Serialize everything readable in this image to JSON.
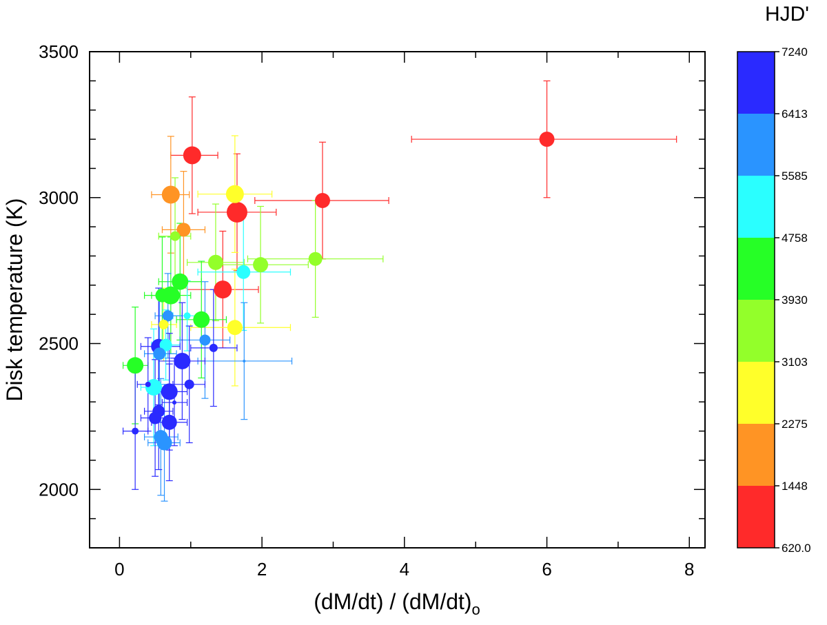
{
  "chart_data": {
    "type": "scatter",
    "title": "",
    "xlabel_main": "(dM/dt) / (dM/dt)",
    "xlabel_sub": "o",
    "ylabel": "Disk temperature (K)",
    "xlim": [
      -0.42,
      8.22
    ],
    "ylim": [
      1800,
      3500
    ],
    "xticks": [
      "0",
      "2",
      "4",
      "6",
      "8"
    ],
    "yticks": [
      "2000",
      "2500",
      "3000",
      "3500"
    ],
    "colorbar": {
      "title": "HJD'",
      "ticks": [
        "620.0",
        "1448",
        "2275",
        "3103",
        "3930",
        "4758",
        "5585",
        "6413",
        "7240"
      ],
      "colors": [
        "#ff2a2a",
        "#ff9424",
        "#ffff2a",
        "#93ff2a",
        "#26ff26",
        "#2affff",
        "#2a94ff",
        "#2a2aff"
      ]
    },
    "points": [
      {
        "x": 6.0,
        "y": 3200,
        "xlo": 4.1,
        "xhi": 7.82,
        "ylo": 3000,
        "yhi": 3400,
        "size": 11,
        "color": "#ff2a2a"
      },
      {
        "x": 1.02,
        "y": 3145,
        "xlo": 0.72,
        "xhi": 1.38,
        "ylo": 2945,
        "yhi": 3345,
        "size": 13,
        "color": "#ff2a2a"
      },
      {
        "x": 2.85,
        "y": 2990,
        "xlo": 1.9,
        "xhi": 3.78,
        "ylo": 2790,
        "yhi": 3190,
        "size": 11,
        "color": "#ff2a2a"
      },
      {
        "x": 1.65,
        "y": 2950,
        "xlo": 1.1,
        "xhi": 2.2,
        "ylo": 2750,
        "yhi": 3150,
        "size": 15,
        "color": "#ff2a2a"
      },
      {
        "x": 1.45,
        "y": 2685,
        "xlo": 0.95,
        "xhi": 1.95,
        "ylo": 2485,
        "yhi": 2885,
        "size": 13,
        "color": "#ff2a2a"
      },
      {
        "x": 0.72,
        "y": 3010,
        "xlo": 0.45,
        "xhi": 0.98,
        "ylo": 2810,
        "yhi": 3210,
        "size": 13,
        "color": "#ff9424"
      },
      {
        "x": 0.9,
        "y": 2890,
        "xlo": 0.6,
        "xhi": 1.2,
        "ylo": 2690,
        "yhi": 3090,
        "size": 10,
        "color": "#ff9424"
      },
      {
        "x": 1.62,
        "y": 3012,
        "xlo": 1.1,
        "xhi": 2.14,
        "ylo": 2812,
        "yhi": 3212,
        "size": 13,
        "color": "#ffff2a"
      },
      {
        "x": 1.62,
        "y": 2555,
        "xlo": 1.0,
        "xhi": 2.4,
        "ylo": 2355,
        "yhi": 2755,
        "size": 11,
        "color": "#ffff2a"
      },
      {
        "x": 0.62,
        "y": 2565,
        "xlo": 0.45,
        "xhi": 0.8,
        "ylo": 2440,
        "yhi": 2690,
        "size": 7,
        "color": "#ffff2a"
      },
      {
        "x": 2.75,
        "y": 2790,
        "xlo": 1.8,
        "xhi": 3.7,
        "ylo": 2590,
        "yhi": 2990,
        "size": 10,
        "color": "#93ff2a"
      },
      {
        "x": 1.98,
        "y": 2770,
        "xlo": 1.3,
        "xhi": 2.65,
        "ylo": 2570,
        "yhi": 2970,
        "size": 11,
        "color": "#93ff2a"
      },
      {
        "x": 1.35,
        "y": 2778,
        "xlo": 0.95,
        "xhi": 1.75,
        "ylo": 2578,
        "yhi": 2978,
        "size": 11,
        "color": "#93ff2a"
      },
      {
        "x": 0.78,
        "y": 2868,
        "xlo": 0.55,
        "xhi": 1.0,
        "ylo": 2668,
        "yhi": 3068,
        "size": 7,
        "color": "#93ff2a"
      },
      {
        "x": 0.85,
        "y": 2712,
        "xlo": 0.55,
        "xhi": 1.15,
        "ylo": 2512,
        "yhi": 2912,
        "size": 12,
        "color": "#26ff26"
      },
      {
        "x": 0.72,
        "y": 2665,
        "xlo": 0.45,
        "xhi": 1.0,
        "ylo": 2465,
        "yhi": 2865,
        "size": 13,
        "color": "#26ff26"
      },
      {
        "x": 0.6,
        "y": 2665,
        "xlo": 0.35,
        "xhi": 0.85,
        "ylo": 2465,
        "yhi": 2865,
        "size": 10,
        "color": "#26ff26"
      },
      {
        "x": 1.15,
        "y": 2582,
        "xlo": 0.8,
        "xhi": 1.5,
        "ylo": 2382,
        "yhi": 2782,
        "size": 12,
        "color": "#26ff26"
      },
      {
        "x": 0.22,
        "y": 2425,
        "xlo": 0.05,
        "xhi": 0.4,
        "ylo": 2225,
        "yhi": 2625,
        "size": 12,
        "color": "#26ff26"
      },
      {
        "x": 1.74,
        "y": 2745,
        "xlo": 1.1,
        "xhi": 2.4,
        "ylo": 2545,
        "yhi": 2945,
        "size": 10,
        "color": "#2affff"
      },
      {
        "x": 0.48,
        "y": 2350,
        "xlo": 0.3,
        "xhi": 0.7,
        "ylo": 2150,
        "yhi": 2550,
        "size": 12,
        "color": "#2affff"
      },
      {
        "x": 0.95,
        "y": 2595,
        "xlo": 0.75,
        "xhi": 1.15,
        "ylo": 2475,
        "yhi": 2715,
        "size": 5,
        "color": "#2affff"
      },
      {
        "x": 0.65,
        "y": 2495,
        "xlo": 0.45,
        "xhi": 0.85,
        "ylo": 2375,
        "yhi": 2615,
        "size": 9,
        "color": "#2affff"
      },
      {
        "x": 0.68,
        "y": 2595,
        "xlo": 0.5,
        "xhi": 0.88,
        "ylo": 2450,
        "yhi": 2740,
        "size": 8,
        "color": "#2a94ff"
      },
      {
        "x": 1.2,
        "y": 2512,
        "xlo": 0.85,
        "xhi": 1.55,
        "ylo": 2312,
        "yhi": 2712,
        "size": 8,
        "color": "#2a94ff"
      },
      {
        "x": 1.75,
        "y": 2440,
        "xlo": 1.1,
        "xhi": 2.42,
        "ylo": 2240,
        "yhi": 2640,
        "size": 2,
        "color": "#2a94ff"
      },
      {
        "x": 0.58,
        "y": 2180,
        "xlo": 0.35,
        "xhi": 0.82,
        "ylo": 1980,
        "yhi": 2380,
        "size": 10,
        "color": "#2a94ff"
      },
      {
        "x": 0.63,
        "y": 2160,
        "xlo": 0.4,
        "xhi": 0.85,
        "ylo": 1960,
        "yhi": 2360,
        "size": 11,
        "color": "#2a94ff"
      },
      {
        "x": 0.56,
        "y": 2465,
        "xlo": 0.35,
        "xhi": 0.8,
        "ylo": 2265,
        "yhi": 2665,
        "size": 9,
        "color": "#2a94ff"
      },
      {
        "x": 0.55,
        "y": 2490,
        "xlo": 0.3,
        "xhi": 0.85,
        "ylo": 2290,
        "yhi": 2690,
        "size": 11,
        "color": "#2a2aff"
      },
      {
        "x": 0.88,
        "y": 2440,
        "xlo": 0.55,
        "xhi": 1.2,
        "ylo": 2240,
        "yhi": 2640,
        "size": 12,
        "color": "#2a2aff"
      },
      {
        "x": 0.7,
        "y": 2335,
        "xlo": 0.45,
        "xhi": 0.95,
        "ylo": 2135,
        "yhi": 2535,
        "size": 12,
        "color": "#2a2aff"
      },
      {
        "x": 0.55,
        "y": 2268,
        "xlo": 0.35,
        "xhi": 0.75,
        "ylo": 2068,
        "yhi": 2468,
        "size": 9,
        "color": "#2a2aff"
      },
      {
        "x": 0.5,
        "y": 2245,
        "xlo": 0.3,
        "xhi": 0.7,
        "ylo": 2045,
        "yhi": 2445,
        "size": 9,
        "color": "#2a2aff"
      },
      {
        "x": 0.7,
        "y": 2230,
        "xlo": 0.45,
        "xhi": 0.95,
        "ylo": 2030,
        "yhi": 2430,
        "size": 11,
        "color": "#2a2aff"
      },
      {
        "x": 0.22,
        "y": 2200,
        "xlo": 0.05,
        "xhi": 0.4,
        "ylo": 2000,
        "yhi": 2400,
        "size": 5,
        "color": "#2a2aff"
      },
      {
        "x": 0.98,
        "y": 2360,
        "xlo": 0.75,
        "xhi": 1.2,
        "ylo": 2160,
        "yhi": 2560,
        "size": 7,
        "color": "#2a2aff"
      },
      {
        "x": 1.32,
        "y": 2485,
        "xlo": 1.0,
        "xhi": 1.65,
        "ylo": 2285,
        "yhi": 2685,
        "size": 6,
        "color": "#2a2aff"
      },
      {
        "x": 0.4,
        "y": 2360,
        "xlo": 0.25,
        "xhi": 0.55,
        "ylo": 2200,
        "yhi": 2520,
        "size": 4,
        "color": "#2a2aff"
      },
      {
        "x": 0.77,
        "y": 2298,
        "xlo": 0.6,
        "xhi": 0.95,
        "ylo": 2150,
        "yhi": 2450,
        "size": 3,
        "color": "#2a2aff"
      }
    ]
  }
}
